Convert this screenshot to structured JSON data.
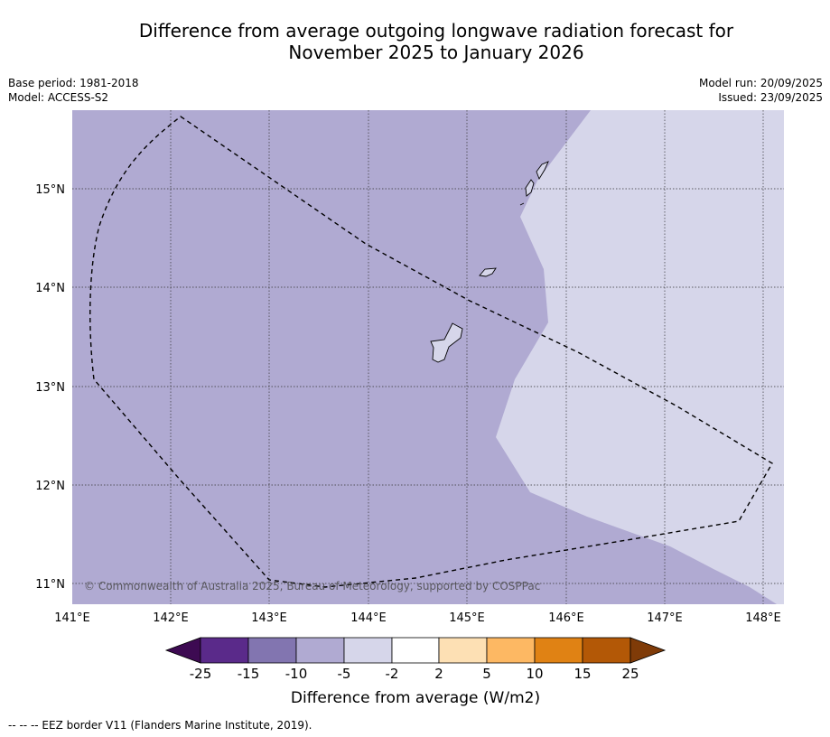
{
  "title_line1": "Difference from average outgoing longwave radiation forecast for",
  "title_line2": "November 2025 to January 2026",
  "base_period": "Base period: 1981-2018",
  "model": "Model: ACCESS-S2",
  "model_run": "Model run: 20/09/2025",
  "issued": "Issued: 23/09/2025",
  "map": {
    "lat_labels": [
      "15°N",
      "14°N",
      "13°N",
      "12°N",
      "11°N"
    ],
    "lon_labels": [
      "141°E",
      "142°E",
      "143°E",
      "144°E",
      "145°E",
      "146°E",
      "147°E",
      "148°E"
    ],
    "copyright": "© Commonwealth of Australia 2025, Bureau of Meteorology, supported by COSPPac",
    "colors": {
      "band_-10_-5": "#b0aad2",
      "band_-5_-2": "#d6d6ea"
    }
  },
  "colorbar": {
    "label": "Difference from average (W/m2)",
    "ticks": [
      "-25",
      "-15",
      "-10",
      "-5",
      "-2",
      "2",
      "5",
      "10",
      "15",
      "25"
    ],
    "colors": [
      "#3d0a52",
      "#5a2a8a",
      "#8275b0",
      "#b0aad2",
      "#d6d6ea",
      "#ffffff",
      "#fde0b4",
      "#fdb863",
      "#e08214",
      "#b35806",
      "#7f3b08"
    ]
  },
  "footer": "--  --  -- EEZ border V11 (Flanders Marine Institute, 2019)."
}
